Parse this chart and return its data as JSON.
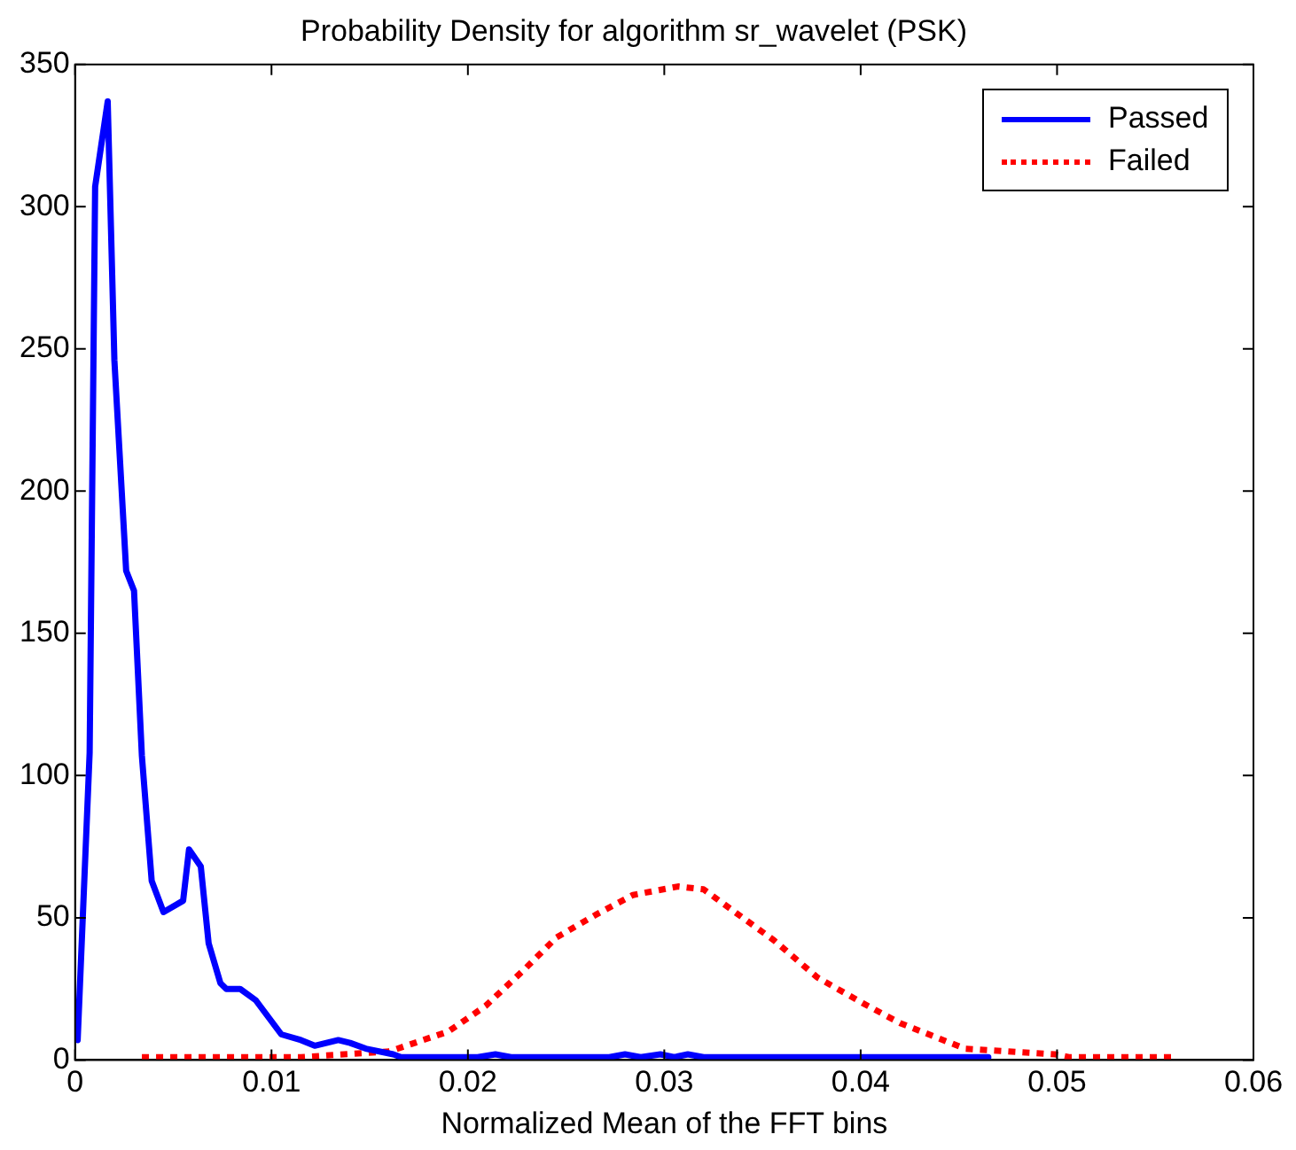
{
  "chart_data": {
    "type": "line",
    "title": "Probability Density for algorithm sr_wavelet (PSK)",
    "xlabel": "Normalized Mean of the FFT bins",
    "xlim": [
      0,
      0.06
    ],
    "xticks": [
      0,
      0.01,
      0.02,
      0.03,
      0.04,
      0.05,
      0.06
    ],
    "ylim": [
      0,
      350
    ],
    "yticks": [
      0,
      50,
      100,
      150,
      200,
      250,
      300,
      350
    ],
    "grid": false,
    "legend": "top right",
    "marker": "none",
    "series": [
      {
        "name": "Passed",
        "color": "#0000ff",
        "line_style": "solid",
        "x": [
          0.00013,
          0.00074,
          0.00102,
          0.00166,
          0.002,
          0.0026,
          0.003,
          0.0034,
          0.0039,
          0.0045,
          0.0055,
          0.0058,
          0.0064,
          0.0068,
          0.0074,
          0.0077,
          0.0084,
          0.0092,
          0.0105,
          0.0115,
          0.0122,
          0.0134,
          0.014,
          0.0148,
          0.0162,
          0.0166,
          0.0205,
          0.0214,
          0.0222,
          0.0272,
          0.028,
          0.0288,
          0.0298,
          0.0305,
          0.0312,
          0.032,
          0.0465
        ],
        "values": [
          7,
          108,
          307,
          337,
          246,
          172,
          165,
          107,
          63,
          52,
          56,
          74,
          68,
          41,
          27,
          25,
          25,
          21,
          9,
          7,
          5,
          7,
          6,
          4,
          2,
          1,
          1,
          2,
          1,
          1,
          2,
          1,
          2,
          1,
          2,
          1,
          1
        ]
      },
      {
        "name": "Failed",
        "color": "#ff0000",
        "line_style": "dotted",
        "x": [
          0.0034,
          0.0115,
          0.016,
          0.019,
          0.0209,
          0.0229,
          0.0245,
          0.0265,
          0.0284,
          0.0307,
          0.032,
          0.0336,
          0.0356,
          0.0378,
          0.0401,
          0.042,
          0.0453,
          0.0499,
          0.0506,
          0.0559
        ],
        "values": [
          1,
          1,
          3,
          10,
          19,
          32,
          43,
          51,
          58,
          61,
          60,
          52,
          42,
          29,
          20,
          13,
          4,
          2,
          1,
          1
        ]
      }
    ]
  }
}
